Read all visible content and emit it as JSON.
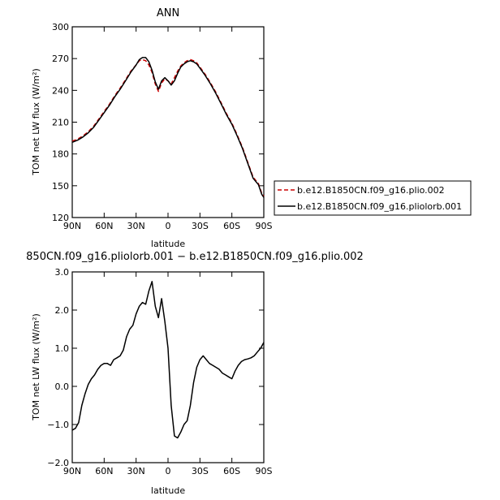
{
  "chart_data": [
    {
      "type": "line",
      "title": "ANN",
      "xlabel": "latitude",
      "ylabel": "TOM net LW flux (W/m²)",
      "xlim": [
        90,
        -90
      ],
      "ylim": [
        120,
        300
      ],
      "x_ticks": [
        90,
        60,
        30,
        0,
        -30,
        -60,
        -90
      ],
      "x_tick_labels": [
        "90N",
        "60N",
        "30N",
        "0",
        "30S",
        "60S",
        "90S"
      ],
      "y_ticks": [
        120,
        150,
        180,
        210,
        240,
        270,
        300
      ],
      "y_tick_labels": [
        "120",
        "150",
        "180",
        "210",
        "240",
        "270",
        "300"
      ],
      "grid": false,
      "legend": "right",
      "series": [
        {
          "name": "b.e12.B1850CN.f09_g16.plio.002",
          "color": "#cc0000",
          "dash": "dashed",
          "x": [
            90,
            85,
            80,
            75,
            70,
            65,
            60,
            55,
            50,
            45,
            40,
            35,
            30,
            27,
            24,
            21,
            18,
            15,
            12,
            9,
            6,
            3,
            0,
            -3,
            -6,
            -9,
            -12,
            -15,
            -18,
            -21,
            -24,
            -27,
            -30,
            -35,
            -40,
            -45,
            -50,
            -55,
            -60,
            -65,
            -70,
            -75,
            -80,
            -85,
            -88,
            -90
          ],
          "y": [
            192,
            194,
            197,
            201,
            206,
            213,
            220,
            227,
            235,
            242,
            250,
            258,
            264,
            268,
            269,
            268,
            264,
            257,
            246,
            239,
            247,
            251,
            249,
            246,
            252,
            258,
            263,
            266,
            268,
            269,
            268,
            266,
            262,
            255,
            247,
            238,
            228,
            218,
            209,
            198,
            186,
            172,
            158,
            152,
            143,
            140
          ]
        },
        {
          "name": "b.e12.B1850CN.f09_g16.pliolorb.001",
          "color": "#000000",
          "dash": "solid",
          "x": [
            90,
            85,
            80,
            75,
            70,
            65,
            60,
            55,
            50,
            45,
            40,
            35,
            30,
            27,
            24,
            21,
            18,
            15,
            12,
            9,
            6,
            3,
            0,
            -3,
            -6,
            -9,
            -12,
            -15,
            -18,
            -21,
            -24,
            -27,
            -30,
            -35,
            -40,
            -45,
            -50,
            -55,
            -60,
            -65,
            -70,
            -75,
            -80,
            -85,
            -88,
            -90
          ],
          "y": [
            191,
            193,
            196,
            200,
            205,
            212,
            219,
            226,
            234,
            241,
            249,
            257,
            264,
            269,
            271,
            271,
            267,
            259,
            248,
            241,
            249,
            252,
            249,
            245,
            249,
            256,
            262,
            265,
            267,
            268,
            267,
            265,
            261,
            254,
            246,
            237,
            227,
            217,
            208,
            197,
            185,
            171,
            157,
            151,
            142,
            139
          ]
        }
      ]
    },
    {
      "type": "line",
      "title": "850CN.f09_g16.pliolorb.001 − b.e12.B1850CN.f09_g16.plio.002",
      "xlabel": "latitude",
      "ylabel": "TOM net LW flux (W/m²)",
      "xlim": [
        90,
        -90
      ],
      "ylim": [
        -2.0,
        3.0
      ],
      "x_ticks": [
        90,
        60,
        30,
        0,
        -30,
        -60,
        -90
      ],
      "x_tick_labels": [
        "90N",
        "60N",
        "30N",
        "0",
        "30S",
        "60S",
        "90S"
      ],
      "y_ticks": [
        -2.0,
        -1.0,
        0.0,
        1.0,
        2.0,
        3.0
      ],
      "y_tick_labels": [
        "−2.0",
        "−1.0",
        "0.0",
        "1.0",
        "2.0",
        "3.0"
      ],
      "grid": false,
      "series": [
        {
          "color": "#000000",
          "dash": "solid",
          "x": [
            90,
            87,
            84,
            81,
            78,
            75,
            72,
            69,
            66,
            63,
            60,
            57,
            54,
            51,
            48,
            45,
            42,
            39,
            36,
            33,
            30,
            27,
            24,
            21,
            18,
            15,
            12,
            9,
            6,
            3,
            0,
            -3,
            -6,
            -9,
            -12,
            -15,
            -18,
            -21,
            -24,
            -27,
            -30,
            -33,
            -36,
            -39,
            -42,
            -45,
            -48,
            -51,
            -54,
            -57,
            -60,
            -63,
            -66,
            -69,
            -72,
            -75,
            -78,
            -81,
            -84,
            -87,
            -90
          ],
          "y": [
            -1.15,
            -1.1,
            -0.95,
            -0.5,
            -0.2,
            0.05,
            0.2,
            0.3,
            0.45,
            0.55,
            0.6,
            0.6,
            0.55,
            0.7,
            0.75,
            0.8,
            0.95,
            1.3,
            1.5,
            1.6,
            1.9,
            2.1,
            2.2,
            2.15,
            2.5,
            2.75,
            2.1,
            1.8,
            2.3,
            1.7,
            1.0,
            -0.5,
            -1.3,
            -1.35,
            -1.2,
            -1.0,
            -0.9,
            -0.5,
            0.1,
            0.5,
            0.7,
            0.8,
            0.7,
            0.6,
            0.55,
            0.5,
            0.45,
            0.35,
            0.3,
            0.25,
            0.2,
            0.4,
            0.55,
            0.65,
            0.7,
            0.72,
            0.75,
            0.8,
            0.9,
            1.0,
            1.15
          ]
        }
      ]
    }
  ]
}
